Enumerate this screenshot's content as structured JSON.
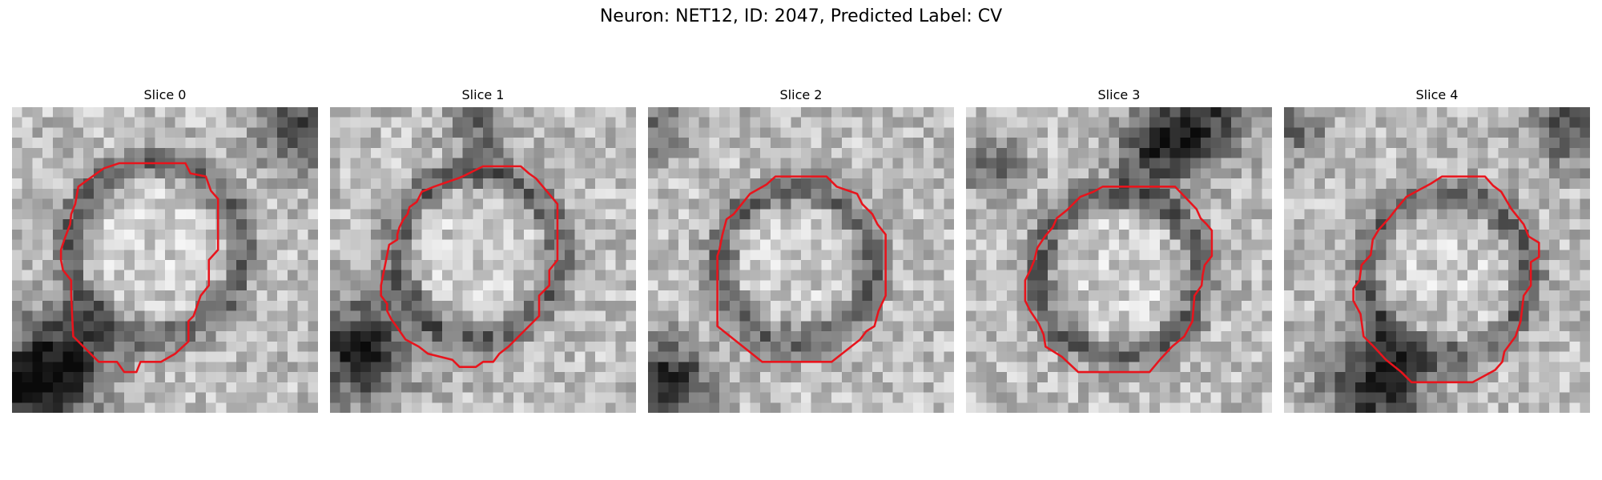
{
  "figure": {
    "title": "Neuron: NET12, ID: 2047, Predicted Label: CV"
  },
  "panels": [
    {
      "title": "Slice 0"
    },
    {
      "title": "Slice 1"
    },
    {
      "title": "Slice 2"
    },
    {
      "title": "Slice 3"
    },
    {
      "title": "Slice 4"
    }
  ],
  "style": {
    "contour_color": "#e8141c",
    "colormap": "grayscale"
  }
}
